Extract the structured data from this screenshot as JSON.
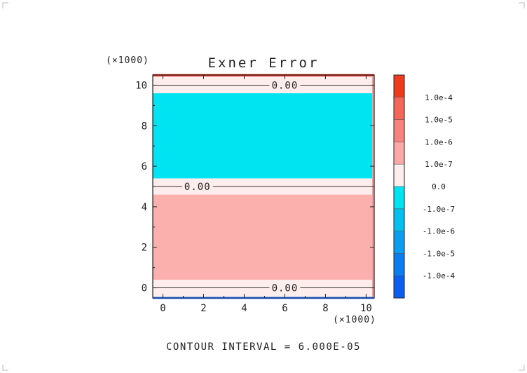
{
  "chart_data": {
    "type": "heatmap",
    "title": "Exner Error",
    "x_multiplier": "(×1000)",
    "y_multiplier": "(×1000)",
    "xlim": [
      -0.5,
      10.4
    ],
    "ylim": [
      -0.5,
      10.5
    ],
    "x_ticks": [
      0,
      2,
      4,
      6,
      8,
      10
    ],
    "y_ticks": [
      0,
      2,
      4,
      6,
      8,
      10
    ],
    "bands": [
      {
        "y0": -0.5,
        "y1": -0.45,
        "level": "-1.0e-5"
      },
      {
        "y0": -0.45,
        "y1": 0.4,
        "level": "0.0"
      },
      {
        "y0": 0.4,
        "y1": 4.6,
        "level": "1.0e-7"
      },
      {
        "y0": 4.6,
        "y1": 5.4,
        "level": "0.0"
      },
      {
        "y0": 5.4,
        "y1": 9.6,
        "level": "-1.0e-7"
      },
      {
        "y0": 9.6,
        "y1": 10.4,
        "level": "0.0"
      },
      {
        "y0": 10.4,
        "y1": 10.5,
        "level": "1.0e-6"
      }
    ],
    "contour_lines": [
      {
        "y": 0.0,
        "label": "0.00",
        "label_x": 6.0
      },
      {
        "y": 5.0,
        "label": "0.00",
        "label_x": 1.7
      },
      {
        "y": 10.0,
        "label": "0.00",
        "label_x": 6.0
      }
    ],
    "colorbar": {
      "levels": [
        "1.0e-4",
        "1.0e-5",
        "1.0e-6",
        "1.0e-7",
        "0.0",
        "-1.0e-7",
        "-1.0e-6",
        "-1.0e-5",
        "-1.0e-4"
      ],
      "colors": [
        "#f03a1e",
        "#f4665a",
        "#f8837e",
        "#fba8a6",
        "#fdeeed",
        "#00e3f0",
        "#00c0f0",
        "#0a9ef0",
        "#0a7ef0",
        "#0a5ef0"
      ]
    },
    "level_colors": {
      "1.0e-6": "#fba8a6",
      "1.0e-7": "#fbb0ae",
      "0.0": "#fdeeed",
      "-1.0e-7": "#00e3f0",
      "-1.0e-5": "#0a9ef0"
    },
    "footer": "CONTOUR INTERVAL = 6.000E-05"
  }
}
